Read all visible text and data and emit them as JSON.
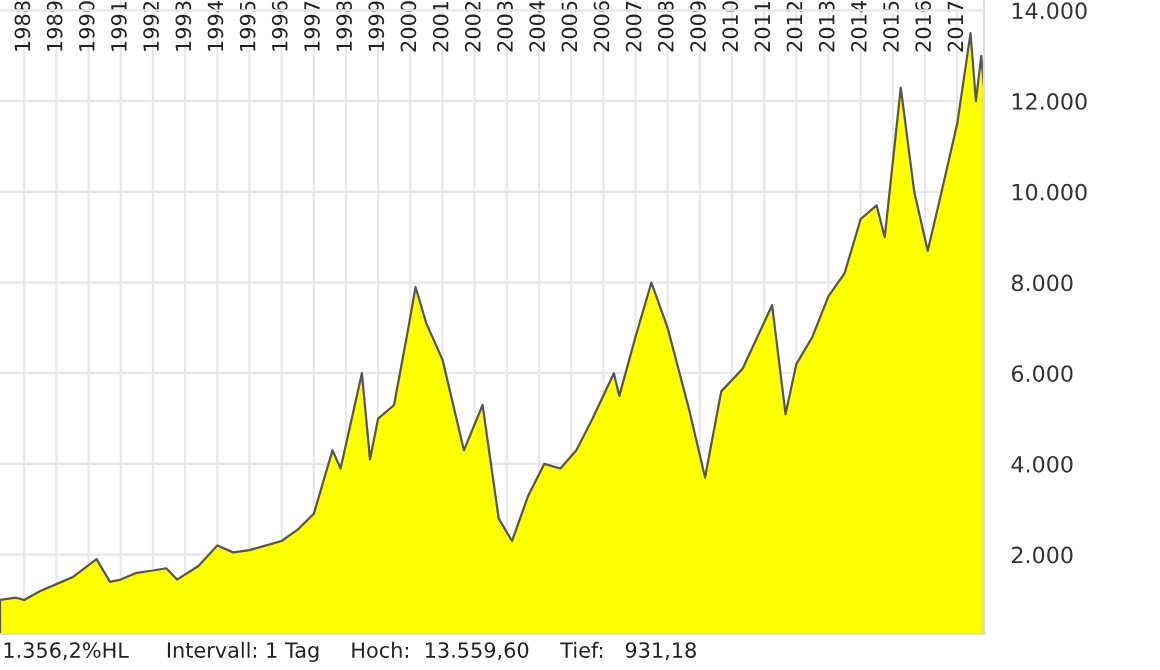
{
  "chart_data": {
    "type": "area",
    "x": [
      "1987-04",
      "1987-10",
      "1988-01",
      "1988-07",
      "1989-01",
      "1989-07",
      "1990-04",
      "1990-09",
      "1991-01",
      "1991-07",
      "1992-01",
      "1992-06",
      "1992-10",
      "1993-06",
      "1994-01",
      "1994-07",
      "1995-01",
      "1995-07",
      "1996-01",
      "1996-07",
      "1997-01",
      "1997-08",
      "1997-11",
      "1998-07",
      "1998-10",
      "1999-01",
      "1999-07",
      "1999-12",
      "2000-03",
      "2000-07",
      "2001-01",
      "2001-09",
      "2002-04",
      "2002-10",
      "2003-03",
      "2003-09",
      "2004-03",
      "2004-09",
      "2005-03",
      "2005-09",
      "2006-05",
      "2006-07",
      "2007-01",
      "2007-07",
      "2008-01",
      "2008-09",
      "2009-03",
      "2009-09",
      "2010-05",
      "2011-04",
      "2011-09",
      "2012-01",
      "2012-07",
      "2013-01",
      "2013-07",
      "2014-01",
      "2014-07",
      "2014-10",
      "2015-04",
      "2015-09",
      "2016-02",
      "2016-06",
      "2017-01",
      "2017-06",
      "2017-08",
      "2017-10",
      "2017-11"
    ],
    "values": [
      1000,
      1050,
      1000,
      1200,
      1350,
      1500,
      1900,
      1400,
      1450,
      1600,
      1650,
      1700,
      1450,
      1750,
      2200,
      2050,
      2100,
      2200,
      2300,
      2550,
      2900,
      4300,
      3900,
      6000,
      4100,
      5000,
      5300,
      6900,
      7900,
      7100,
      6300,
      4300,
      5300,
      2800,
      2300,
      3300,
      4000,
      3900,
      4300,
      5000,
      6000,
      5500,
      6800,
      8000,
      7000,
      5200,
      3700,
      5600,
      6100,
      7500,
      5100,
      6200,
      6800,
      7700,
      8200,
      9400,
      9700,
      9000,
      12300,
      10000,
      8700,
      9700,
      11500,
      13500,
      12000,
      13000,
      12300
    ],
    "color": "#ffff00",
    "xlim": [
      "1987-04",
      "2017-11"
    ],
    "xticks": [
      {
        "value": "1988",
        "label": "1988"
      },
      {
        "value": "1989",
        "label": "1989"
      },
      {
        "value": "1990",
        "label": "1990"
      },
      {
        "value": "1991",
        "label": "1991"
      },
      {
        "value": "1992",
        "label": "1992"
      },
      {
        "value": "1993",
        "label": "1993"
      },
      {
        "value": "1994",
        "label": "1994"
      },
      {
        "value": "1995",
        "label": "1995"
      },
      {
        "value": "1996",
        "label": "1996"
      },
      {
        "value": "1997",
        "label": "1997"
      },
      {
        "value": "1998",
        "label": "1998"
      },
      {
        "value": "1999",
        "label": "1999"
      },
      {
        "value": "2000",
        "label": "2000"
      },
      {
        "value": "2001",
        "label": "2001"
      },
      {
        "value": "2002",
        "label": "2002"
      },
      {
        "value": "2003",
        "label": "2003"
      },
      {
        "value": "2004",
        "label": "2004"
      },
      {
        "value": "2005",
        "label": "2005"
      },
      {
        "value": "2006",
        "label": "2006"
      },
      {
        "value": "2007",
        "label": "2007"
      },
      {
        "value": "2008",
        "label": "2008"
      },
      {
        "value": "2009",
        "label": "2009"
      },
      {
        "value": "2010",
        "label": "2010"
      },
      {
        "value": "2011",
        "label": "2011"
      },
      {
        "value": "2012",
        "label": "2012"
      },
      {
        "value": "2013",
        "label": "2013"
      },
      {
        "value": "2014",
        "label": "2014"
      },
      {
        "value": "2015",
        "label": "2015"
      },
      {
        "value": "2016",
        "label": "2016"
      },
      {
        "value": "2017",
        "label": "2017"
      }
    ],
    "ylim": [
      250,
      14200
    ],
    "yticks": [
      {
        "value": 2000,
        "label": "2.000"
      },
      {
        "value": 4000,
        "label": "4.000"
      },
      {
        "value": 6000,
        "label": "6.000"
      },
      {
        "value": 8000,
        "label": "8.000"
      },
      {
        "value": 10000,
        "label": "10.000"
      },
      {
        "value": 12000,
        "label": "12.000"
      },
      {
        "value": 14000,
        "label": "14.000"
      }
    ],
    "grid": true,
    "annotations": [
      "1.356,2%HL",
      "Intervall: 1 Tag",
      "Hoch:  13.559,60",
      "Tief:   931,18"
    ]
  }
}
